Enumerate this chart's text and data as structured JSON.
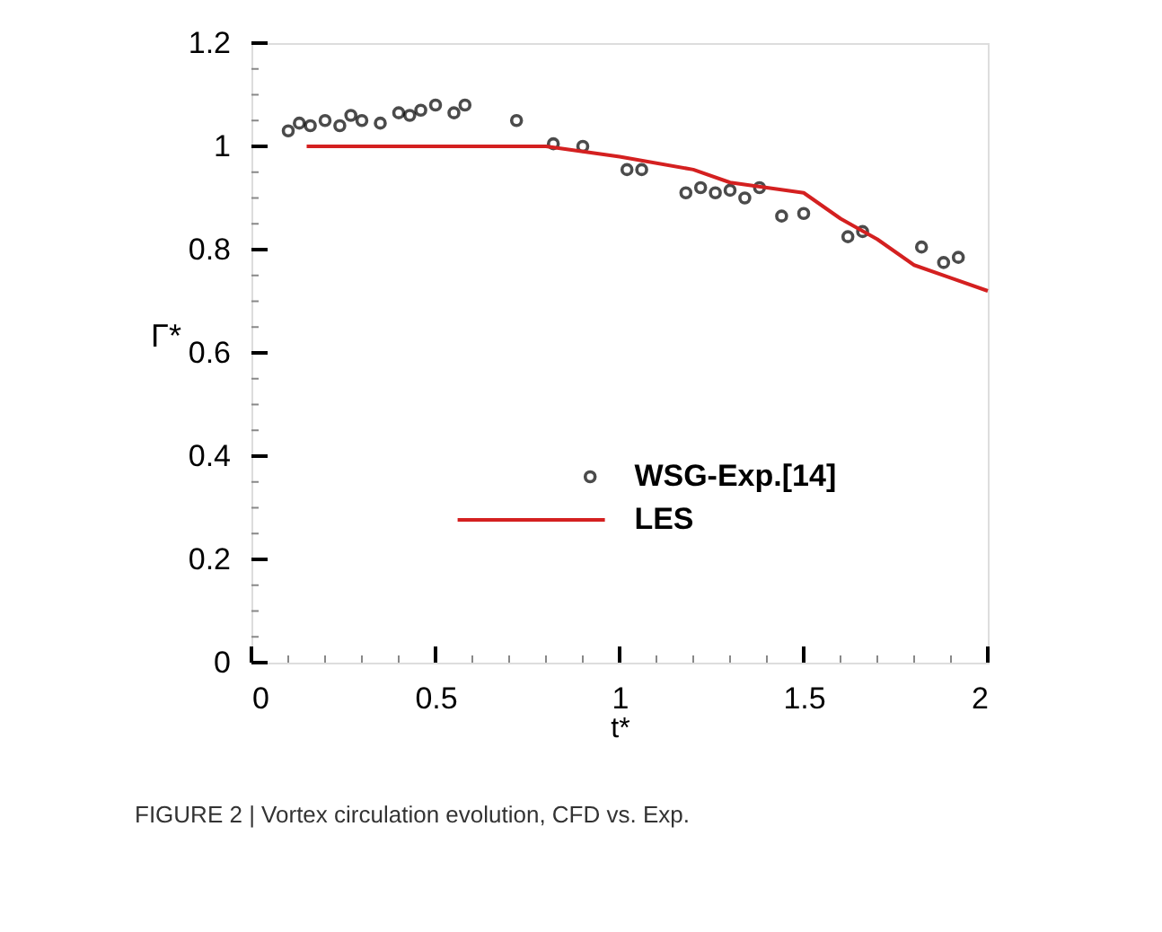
{
  "chart_data": {
    "type": "line",
    "xlabel": "t*",
    "ylabel": "Γ*",
    "xlim": [
      0,
      2
    ],
    "ylim": [
      0,
      1.2
    ],
    "xticks": [
      0,
      0.5,
      1,
      1.5,
      2
    ],
    "yticks": [
      0,
      0.2,
      0.4,
      0.6,
      0.8,
      1,
      1.2
    ],
    "grid": false,
    "legend": "bottom",
    "annotations": [
      "FIGURE 2 | Vortex circulation evolution, CFD vs. Exp."
    ],
    "series": [
      {
        "name": "WSG-Exp.[14]",
        "type": "scatter",
        "marker": "circle",
        "color": "#000000",
        "x": [
          0.1,
          0.13,
          0.16,
          0.2,
          0.24,
          0.27,
          0.3,
          0.35,
          0.4,
          0.43,
          0.46,
          0.5,
          0.55,
          0.58,
          0.72,
          0.82,
          0.9,
          1.02,
          1.06,
          1.18,
          1.22,
          1.26,
          1.3,
          1.34,
          1.38,
          1.44,
          1.5,
          1.62,
          1.66,
          1.82,
          1.88,
          1.92
        ],
        "values": [
          1.03,
          1.045,
          1.04,
          1.05,
          1.04,
          1.06,
          1.05,
          1.045,
          1.065,
          1.06,
          1.07,
          1.08,
          1.065,
          1.08,
          1.05,
          1.005,
          1.0,
          0.955,
          0.955,
          0.91,
          0.92,
          0.91,
          0.915,
          0.9,
          0.92,
          0.865,
          0.87,
          0.825,
          0.835,
          0.805,
          0.775,
          0.785
        ]
      },
      {
        "name": "LES",
        "line_style": "solid",
        "color": "#d42020",
        "x": [
          0.15,
          0.7,
          0.8,
          0.9,
          1.0,
          1.2,
          1.3,
          1.5,
          1.6,
          1.7,
          1.8,
          1.9,
          2.0
        ],
        "values": [
          1.0,
          1.0,
          1.0,
          0.99,
          0.98,
          0.955,
          0.93,
          0.91,
          0.86,
          0.82,
          0.77,
          0.745,
          0.72
        ]
      }
    ]
  }
}
